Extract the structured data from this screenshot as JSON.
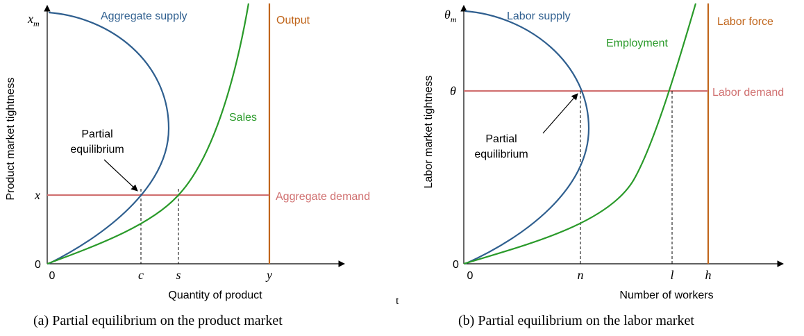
{
  "panels": [
    {
      "y_axis_label": "Product market tightness",
      "x_axis_label": "Quantity of product",
      "y_top": {
        "base": "x",
        "sub": "m"
      },
      "y_mid": "x",
      "origin": "0",
      "x_ticks": [
        "0",
        "c",
        "s",
        "y"
      ],
      "curve_labels": {
        "supply": "Aggregate supply",
        "vertical": "Output",
        "rising": "Sales",
        "horizontal": "Aggregate demand"
      },
      "annotation": [
        "Partial",
        "equilibrium"
      ],
      "caption": "(a) Partial equilibrium on the product market"
    },
    {
      "y_axis_label": "Labor market tightness",
      "x_axis_label": "Number of workers",
      "y_top": {
        "base": "θ",
        "sub": "m"
      },
      "y_mid": "θ",
      "origin": "0",
      "x_ticks": [
        "0",
        "n",
        "l",
        "h"
      ],
      "curve_labels": {
        "supply": "Labor supply",
        "vertical": "Labor force",
        "rising": "Employment",
        "horizontal": "Labor demand"
      },
      "annotation": [
        "Partial",
        "equilibrium"
      ],
      "caption": "(b) Partial equilibrium on the labor market"
    }
  ],
  "stray_text": "t"
}
